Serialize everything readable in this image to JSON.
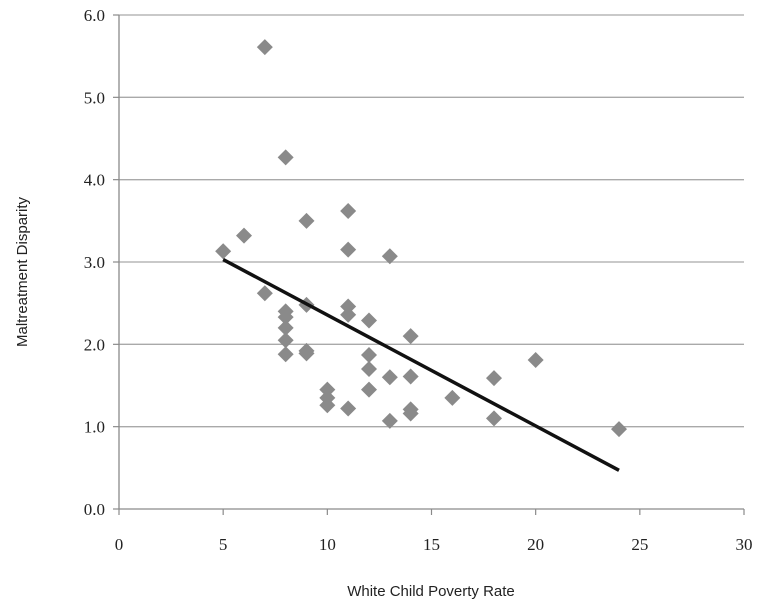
{
  "chart_data": {
    "type": "scatter",
    "xlabel": "White Child Poverty Rate",
    "ylabel": "Maltreatment Disparity",
    "xlim": [
      0,
      30
    ],
    "ylim": [
      0,
      6
    ],
    "x_ticks": [
      "0",
      "5",
      "10",
      "15",
      "20",
      "25",
      "30"
    ],
    "y_ticks": [
      "0.0",
      "1.0",
      "2.0",
      "3.0",
      "4.0",
      "5.0",
      "6.0"
    ],
    "grid": "horizontal",
    "legend": "none",
    "marker": "diamond",
    "marker_color": "#8a8a8a",
    "line_color": "#111111",
    "points": [
      {
        "x": 5,
        "y": 3.13
      },
      {
        "x": 6,
        "y": 3.32
      },
      {
        "x": 7,
        "y": 5.61
      },
      {
        "x": 7,
        "y": 2.62
      },
      {
        "x": 8,
        "y": 4.27
      },
      {
        "x": 8,
        "y": 2.4
      },
      {
        "x": 8,
        "y": 2.33
      },
      {
        "x": 8,
        "y": 2.2
      },
      {
        "x": 8,
        "y": 2.05
      },
      {
        "x": 8,
        "y": 1.88
      },
      {
        "x": 9,
        "y": 3.5
      },
      {
        "x": 9,
        "y": 2.48
      },
      {
        "x": 9,
        "y": 1.92
      },
      {
        "x": 9,
        "y": 1.89
      },
      {
        "x": 10,
        "y": 1.45
      },
      {
        "x": 10,
        "y": 1.35
      },
      {
        "x": 10,
        "y": 1.26
      },
      {
        "x": 11,
        "y": 3.62
      },
      {
        "x": 11,
        "y": 3.15
      },
      {
        "x": 11,
        "y": 2.46
      },
      {
        "x": 11,
        "y": 2.36
      },
      {
        "x": 11,
        "y": 1.22
      },
      {
        "x": 12,
        "y": 2.29
      },
      {
        "x": 12,
        "y": 1.87
      },
      {
        "x": 12,
        "y": 1.7
      },
      {
        "x": 12,
        "y": 1.45
      },
      {
        "x": 13,
        "y": 3.07
      },
      {
        "x": 13,
        "y": 1.6
      },
      {
        "x": 13,
        "y": 1.07
      },
      {
        "x": 14,
        "y": 2.1
      },
      {
        "x": 14,
        "y": 1.61
      },
      {
        "x": 14,
        "y": 1.21
      },
      {
        "x": 14,
        "y": 1.16
      },
      {
        "x": 16,
        "y": 1.35
      },
      {
        "x": 18,
        "y": 1.59
      },
      {
        "x": 18,
        "y": 1.1
      },
      {
        "x": 20,
        "y": 1.81
      },
      {
        "x": 24,
        "y": 0.97
      }
    ],
    "trendline": {
      "x": [
        5,
        24
      ],
      "y": [
        3.03,
        0.47
      ]
    }
  }
}
